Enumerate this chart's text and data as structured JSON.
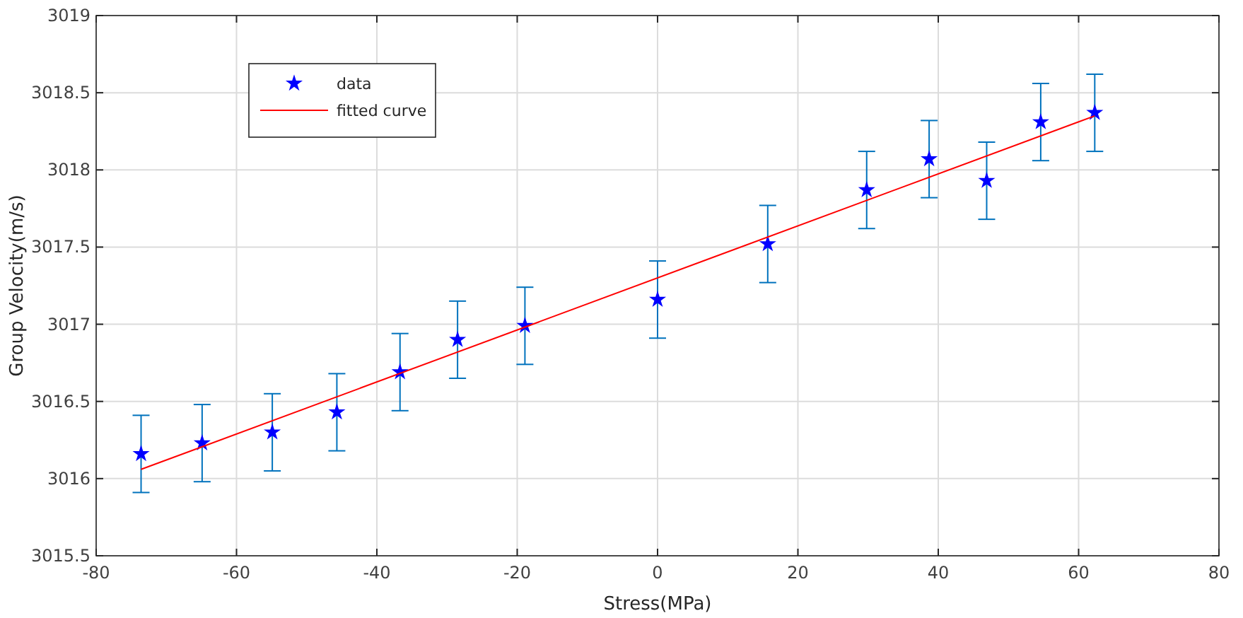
{
  "chart_data": {
    "type": "scatter",
    "xlabel": "Stress(MPa)",
    "ylabel": "Group Velocity(m/s)",
    "xlim": [
      -80,
      80
    ],
    "xticks": [
      -80,
      -60,
      -40,
      -20,
      0,
      20,
      40,
      60,
      80
    ],
    "ylim": [
      3015.5,
      3019
    ],
    "yticks": [
      3015.5,
      3016,
      3016.5,
      3017,
      3017.5,
      3018,
      3018.5,
      3019
    ],
    "grid": true,
    "legend": "top left",
    "series": [
      {
        "name": "data",
        "marker": "star",
        "color": "#0000ff",
        "x": [
          -73.6,
          -64.9,
          -54.9,
          -45.7,
          -36.7,
          -28.5,
          -18.9,
          0,
          15.7,
          29.8,
          38.7,
          46.9,
          54.6,
          62.3
        ],
        "values": [
          3016.16,
          3016.23,
          3016.3,
          3016.43,
          3016.69,
          3016.9,
          3016.99,
          3017.16,
          3017.52,
          3017.87,
          3018.07,
          3017.93,
          3018.31,
          3018.37
        ],
        "errors": [
          0.25,
          0.25,
          0.25,
          0.25,
          0.25,
          0.25,
          0.25,
          0.25,
          0.25,
          0.25,
          0.25,
          0.25,
          0.25,
          0.25
        ]
      },
      {
        "name": "fitted curve",
        "type": "line",
        "marker": "none",
        "line_style": "solid",
        "color": "#ff0000",
        "x": [
          -73.6,
          62.3
        ],
        "values": [
          3016.06,
          3018.35
        ]
      }
    ]
  }
}
